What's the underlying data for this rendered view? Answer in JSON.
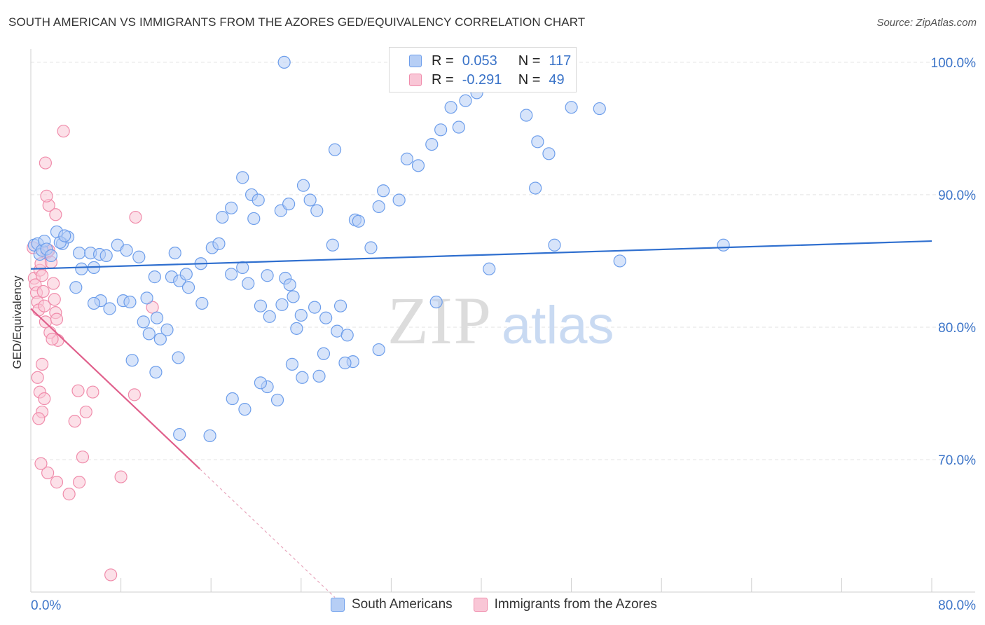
{
  "title": "SOUTH AMERICAN VS IMMIGRANTS FROM THE AZORES GED/EQUIVALENCY CORRELATION CHART",
  "source": "Source: ZipAtlas.com",
  "watermark": {
    "zip": "ZIP",
    "atlas": "atlas"
  },
  "legend_top": [
    {
      "r_label": "R =",
      "r_value": "0.053",
      "n_label": "N =",
      "n_value": "117"
    },
    {
      "r_label": "R =",
      "r_value": "-0.291",
      "n_label": "N =",
      "n_value": "49"
    }
  ],
  "legend_bottom": [
    "South Americans",
    "Immigrants from the Azores"
  ],
  "colors": {
    "blue": "#6d9eeb",
    "blue_line": "#2f6fcf",
    "pink": "#f08cab",
    "pink_line": "#e0608c",
    "axis_text": "#3a73c8"
  },
  "chart_data": {
    "type": "scatter",
    "ylabel": "GED/Equivalency",
    "xlim": [
      0,
      80
    ],
    "ylim": [
      60,
      101
    ],
    "x_tick_labels": [
      "0.0%",
      "80.0%"
    ],
    "y_ticks": [
      70,
      80,
      90,
      100
    ],
    "y_tick_labels": [
      "70.0%",
      "80.0%",
      "90.0%",
      "100.0%"
    ],
    "grid": true,
    "legend_placement": "top-center",
    "series": [
      {
        "name": "South Americans",
        "color": "#6d9eeb",
        "trend": {
          "x": [
            0,
            80
          ],
          "y": [
            84.4,
            86.5
          ]
        },
        "points": [
          [
            0.3,
            86.2
          ],
          [
            0.6,
            86.3
          ],
          [
            0.8,
            85.5
          ],
          [
            1.0,
            85.8
          ],
          [
            1.2,
            86.5
          ],
          [
            1.4,
            85.9
          ],
          [
            1.8,
            85.4
          ],
          [
            2.3,
            87.2
          ],
          [
            2.8,
            86.3
          ],
          [
            3.3,
            86.8
          ],
          [
            2.6,
            86.4
          ],
          [
            3.0,
            86.9
          ],
          [
            4.3,
            85.6
          ],
          [
            4.5,
            84.4
          ],
          [
            5.3,
            85.6
          ],
          [
            6.1,
            85.5
          ],
          [
            5.6,
            84.5
          ],
          [
            4.0,
            83.0
          ],
          [
            6.7,
            85.4
          ],
          [
            7.7,
            86.2
          ],
          [
            8.5,
            85.8
          ],
          [
            9.6,
            85.3
          ],
          [
            6.2,
            82.0
          ],
          [
            5.6,
            81.8
          ],
          [
            7.0,
            81.4
          ],
          [
            8.2,
            82.0
          ],
          [
            8.8,
            81.9
          ],
          [
            10.0,
            80.4
          ],
          [
            10.5,
            79.5
          ],
          [
            11.5,
            79.1
          ],
          [
            11.2,
            80.7
          ],
          [
            12.1,
            79.8
          ],
          [
            9.0,
            77.5
          ],
          [
            10.3,
            82.2
          ],
          [
            11.0,
            83.8
          ],
          [
            12.5,
            83.8
          ],
          [
            13.2,
            83.5
          ],
          [
            15.1,
            84.8
          ],
          [
            15.2,
            81.8
          ],
          [
            17.8,
            84.0
          ],
          [
            18.8,
            84.5
          ],
          [
            19.3,
            83.3
          ],
          [
            20.4,
            81.6
          ],
          [
            21.2,
            80.8
          ],
          [
            21.0,
            83.9
          ],
          [
            22.3,
            81.7
          ],
          [
            22.6,
            83.7
          ],
          [
            23.0,
            83.2
          ],
          [
            23.6,
            79.9
          ],
          [
            23.3,
            82.3
          ],
          [
            24.0,
            80.9
          ],
          [
            25.2,
            81.5
          ],
          [
            26.2,
            80.7
          ],
          [
            27.5,
            81.6
          ],
          [
            27.2,
            79.7
          ],
          [
            28.1,
            79.4
          ],
          [
            30.9,
            78.3
          ],
          [
            28.6,
            77.4
          ],
          [
            27.9,
            77.3
          ],
          [
            26.0,
            78.0
          ],
          [
            25.6,
            76.3
          ],
          [
            24.1,
            76.2
          ],
          [
            23.2,
            77.2
          ],
          [
            21.9,
            74.5
          ],
          [
            21.0,
            75.5
          ],
          [
            20.4,
            75.8
          ],
          [
            19.0,
            73.8
          ],
          [
            17.9,
            74.6
          ],
          [
            15.9,
            71.8
          ],
          [
            13.2,
            71.9
          ],
          [
            13.1,
            77.7
          ],
          [
            11.1,
            76.6
          ],
          [
            14.0,
            83.0
          ],
          [
            12.8,
            85.6
          ],
          [
            13.8,
            84.0
          ],
          [
            16.1,
            86.0
          ],
          [
            16.7,
            86.3
          ],
          [
            17.0,
            88.3
          ],
          [
            17.8,
            89.0
          ],
          [
            19.8,
            88.2
          ],
          [
            19.6,
            90.0
          ],
          [
            18.8,
            91.3
          ],
          [
            20.2,
            89.6
          ],
          [
            22.2,
            88.8
          ],
          [
            22.9,
            89.3
          ],
          [
            24.2,
            90.7
          ],
          [
            24.8,
            89.6
          ],
          [
            25.4,
            88.8
          ],
          [
            26.8,
            86.2
          ],
          [
            28.8,
            88.1
          ],
          [
            30.2,
            86.0
          ],
          [
            29.1,
            88.0
          ],
          [
            30.9,
            89.1
          ],
          [
            31.3,
            90.3
          ],
          [
            32.7,
            89.6
          ],
          [
            33.4,
            92.7
          ],
          [
            34.4,
            92.2
          ],
          [
            35.6,
            93.8
          ],
          [
            36.4,
            94.9
          ],
          [
            37.3,
            96.6
          ],
          [
            38.0,
            95.1
          ],
          [
            38.6,
            97.1
          ],
          [
            39.6,
            97.7
          ],
          [
            40.5,
            98.2
          ],
          [
            44.0,
            96.0
          ],
          [
            45.0,
            94.0
          ],
          [
            46.0,
            93.1
          ],
          [
            48.0,
            96.6
          ],
          [
            50.5,
            96.5
          ],
          [
            38.4,
            100.0
          ],
          [
            35.2,
            100.0
          ],
          [
            27.0,
            93.4
          ],
          [
            22.5,
            100.0
          ],
          [
            40.7,
            84.4
          ],
          [
            44.8,
            90.5
          ],
          [
            46.5,
            86.2
          ],
          [
            36.0,
            81.9
          ],
          [
            52.3,
            85.0
          ],
          [
            61.5,
            86.2
          ]
        ]
      },
      {
        "name": "Immigrants from the Azores",
        "color": "#f08cab",
        "trend": {
          "x": [
            0,
            15
          ],
          "y": [
            81.4,
            69.3
          ]
        },
        "trend_dashed": {
          "x": [
            15,
            27
          ],
          "y": [
            69.3,
            59.6
          ]
        },
        "points": [
          [
            0.2,
            86.0
          ],
          [
            0.3,
            83.7
          ],
          [
            0.4,
            83.2
          ],
          [
            0.5,
            82.6
          ],
          [
            0.6,
            81.9
          ],
          [
            0.7,
            81.3
          ],
          [
            0.8,
            84.3
          ],
          [
            0.9,
            84.8
          ],
          [
            1.0,
            83.9
          ],
          [
            1.1,
            82.7
          ],
          [
            1.2,
            81.6
          ],
          [
            1.3,
            80.4
          ],
          [
            1.4,
            85.6
          ],
          [
            1.5,
            85.7
          ],
          [
            1.6,
            85.8
          ],
          [
            1.8,
            84.9
          ],
          [
            2.0,
            83.3
          ],
          [
            2.1,
            82.1
          ],
          [
            2.2,
            81.1
          ],
          [
            2.3,
            80.6
          ],
          [
            2.4,
            79.0
          ],
          [
            1.7,
            79.6
          ],
          [
            1.9,
            79.1
          ],
          [
            1.0,
            77.2
          ],
          [
            0.6,
            76.2
          ],
          [
            0.8,
            75.1
          ],
          [
            1.2,
            74.6
          ],
          [
            1.0,
            73.6
          ],
          [
            0.7,
            73.1
          ],
          [
            2.2,
            88.5
          ],
          [
            1.6,
            89.2
          ],
          [
            1.4,
            89.9
          ],
          [
            1.3,
            92.4
          ],
          [
            2.9,
            94.8
          ],
          [
            9.3,
            88.3
          ],
          [
            10.8,
            81.5
          ],
          [
            9.2,
            74.9
          ],
          [
            5.5,
            75.1
          ],
          [
            4.9,
            73.6
          ],
          [
            3.9,
            72.9
          ],
          [
            4.6,
            70.2
          ],
          [
            4.3,
            68.3
          ],
          [
            3.4,
            67.4
          ],
          [
            2.3,
            68.3
          ],
          [
            1.5,
            69.0
          ],
          [
            0.9,
            69.7
          ],
          [
            8.0,
            68.7
          ],
          [
            7.1,
            61.3
          ],
          [
            4.2,
            75.2
          ]
        ]
      }
    ]
  }
}
